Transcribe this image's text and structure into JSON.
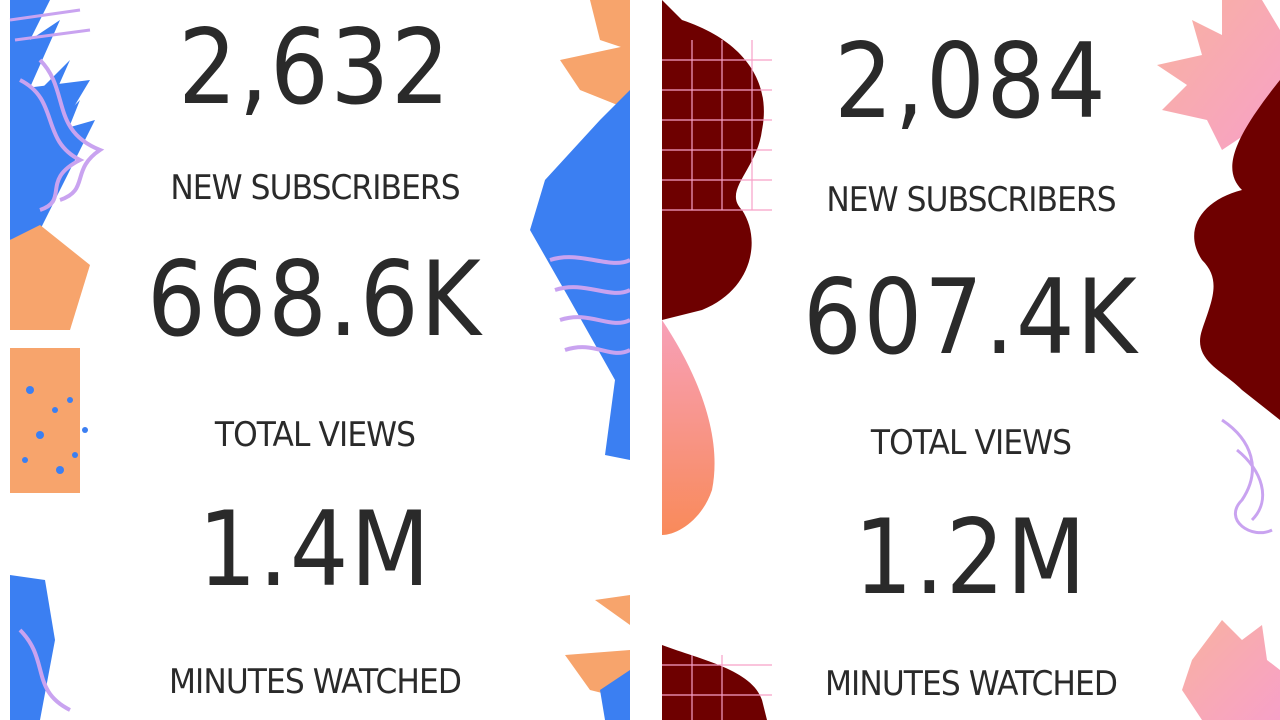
{
  "colors": {
    "left_blue": "#3b7ff2",
    "left_orange": "#f7a46c",
    "left_lilac": "#c9a3f0",
    "right_maroon": "#6e0000",
    "right_pink": "#f7a0b8",
    "right_coral": "#f9b2a0",
    "text": "#2a2a2a"
  },
  "left_card": {
    "stats": [
      {
        "value": "2,632",
        "label": "NEW SUBSCRIBERS"
      },
      {
        "value": "668.6K",
        "label": "TOTAL VIEWS"
      },
      {
        "value": "1.4M",
        "label": "MINUTES WATCHED"
      }
    ]
  },
  "right_card": {
    "stats": [
      {
        "value": "2,084",
        "label": "NEW SUBSCRIBERS"
      },
      {
        "value": "607.4K",
        "label": "TOTAL VIEWS"
      },
      {
        "value": "1.2M",
        "label": "MINUTES WATCHED"
      }
    ]
  }
}
